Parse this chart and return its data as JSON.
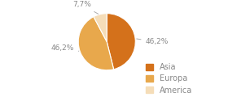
{
  "labels": [
    "Asia",
    "Europa",
    "America"
  ],
  "values": [
    46.2,
    46.2,
    7.7
  ],
  "colors": [
    "#d4711b",
    "#e8a84c",
    "#f5ddb8"
  ],
  "pct_labels": [
    "46,2%",
    "46,2%",
    "7,7%"
  ],
  "legend_labels": [
    "Asia",
    "Europa",
    "America"
  ],
  "startangle": 90,
  "background_color": "#ffffff"
}
